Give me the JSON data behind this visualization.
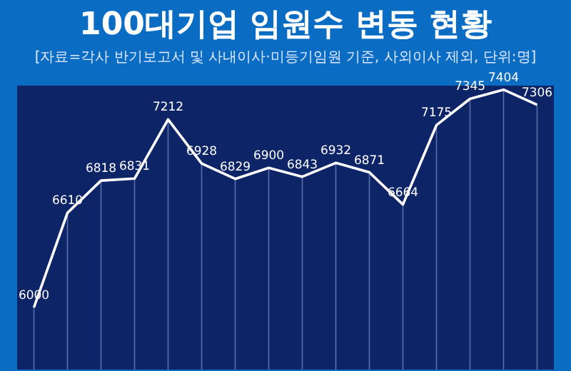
{
  "chart_data": {
    "type": "line",
    "title": "100대기업 임원수 변동 현황",
    "subtitle": "[자료=각사 반기보고서 및 사내이사·미등기임원 기준, 사외이사 제외, 단위:명]",
    "categories": [
      null,
      null,
      null,
      null,
      null,
      null,
      null,
      null,
      null,
      null,
      null,
      null,
      null,
      null,
      null,
      null
    ],
    "series": [
      {
        "color": "#ffffff",
        "values": [
          6000,
          6610,
          6818,
          6831,
          7212,
          6928,
          6829,
          6900,
          6843,
          6932,
          6871,
          6664,
          7175,
          7345,
          7404,
          7306
        ]
      }
    ],
    "ylim": [
      5600,
      7430
    ],
    "data_labels": true,
    "grid": "x",
    "marker": "none",
    "line_style": "solid",
    "tick_labels": false
  }
}
